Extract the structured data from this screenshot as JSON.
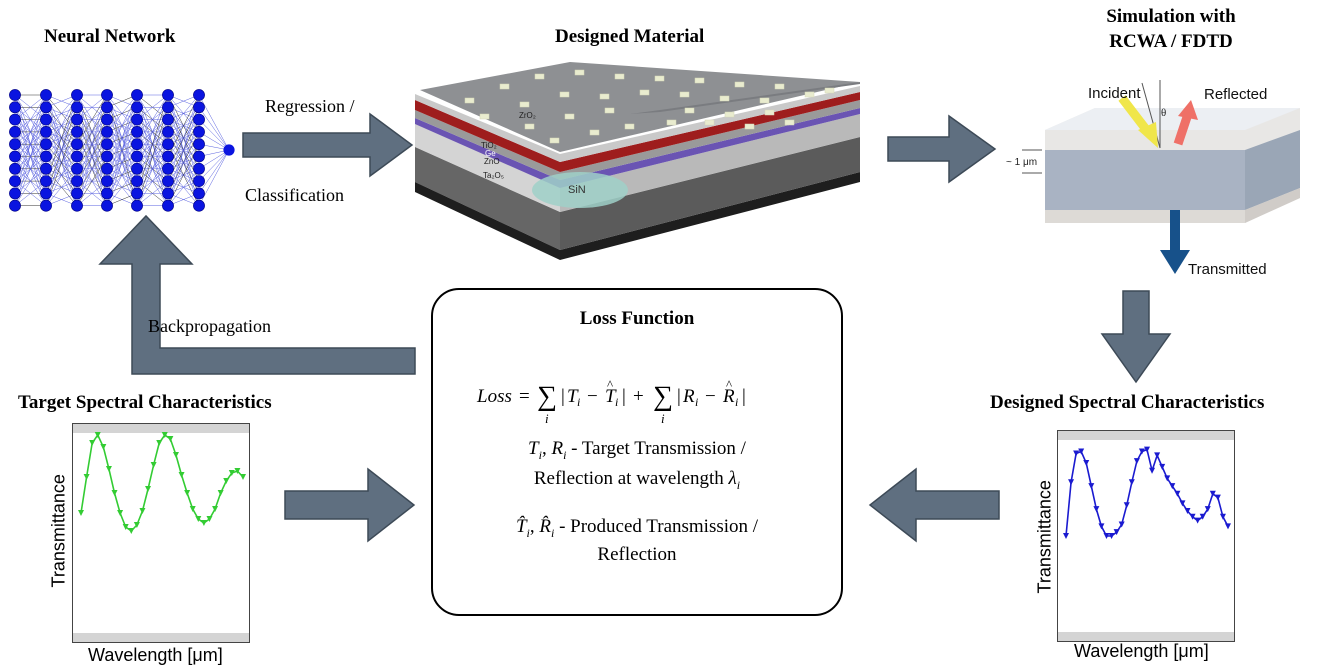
{
  "titles": {
    "neural_network": "Neural Network",
    "designed_material": "Designed Material",
    "simulation_line1": "Simulation with",
    "simulation_line2": "RCWA / FDTD",
    "target_spectral": "Target Spectral Characteristics",
    "designed_spectral": "Designed Spectral Characteristics"
  },
  "arrow_labels": {
    "regression": "Regression /",
    "classification": "Classification",
    "backpropagation": "Backpropagation"
  },
  "material_layers": {
    "zro2": "ZrO₂",
    "tio2": "TiO₂",
    "ge": "Ge",
    "zno": "ZnO",
    "ta2o5": "Ta₂O₅",
    "sin": "SiN"
  },
  "simulation": {
    "incident": "Incident",
    "reflected": "Reflected",
    "transmitted": "Transmitted",
    "theta": "θ",
    "thickness": "~ 1 μm"
  },
  "loss": {
    "title": "Loss Function",
    "def_line1": "- Target Transmission /",
    "def_line2a": "Reflection at wavelength",
    "def_line3": "- Produced Transmission /",
    "def_line4": "Reflection"
  },
  "plot_axes": {
    "ylabel": "Transmittance",
    "xlabel": "Wavelength [μm]"
  },
  "colors": {
    "arrow_fill": "#5f6f80",
    "arrow_stroke": "#3d4a57",
    "node": "#0a14e0",
    "target_curve": "#33cc33",
    "designed_curve": "#1a1ad0"
  },
  "chart_data": [
    {
      "type": "line",
      "title": "Target Spectral Characteristics",
      "xlabel": "Wavelength [μm]",
      "ylabel": "Transmittance",
      "grid": false,
      "series": [
        {
          "values": [
            0.6,
            0.78,
            0.95,
            0.99,
            0.93,
            0.82,
            0.7,
            0.6,
            0.53,
            0.51,
            0.54,
            0.61,
            0.72,
            0.84,
            0.95,
            0.99,
            0.97,
            0.89,
            0.79,
            0.7,
            0.62,
            0.57,
            0.55,
            0.57,
            0.62,
            0.7,
            0.76,
            0.8,
            0.81,
            0.78
          ]
        }
      ]
    },
    {
      "type": "line",
      "title": "Designed Spectral Characteristics",
      "xlabel": "Wavelength [μm]",
      "ylabel": "Transmittance",
      "grid": false,
      "series": [
        {
          "values": [
            0.5,
            0.78,
            0.93,
            0.94,
            0.88,
            0.76,
            0.64,
            0.55,
            0.5,
            0.5,
            0.52,
            0.56,
            0.66,
            0.78,
            0.89,
            0.94,
            0.95,
            0.84,
            0.92,
            0.86,
            0.8,
            0.76,
            0.72,
            0.67,
            0.63,
            0.6,
            0.58,
            0.6,
            0.64,
            0.72,
            0.7,
            0.6,
            0.55
          ]
        }
      ]
    }
  ]
}
